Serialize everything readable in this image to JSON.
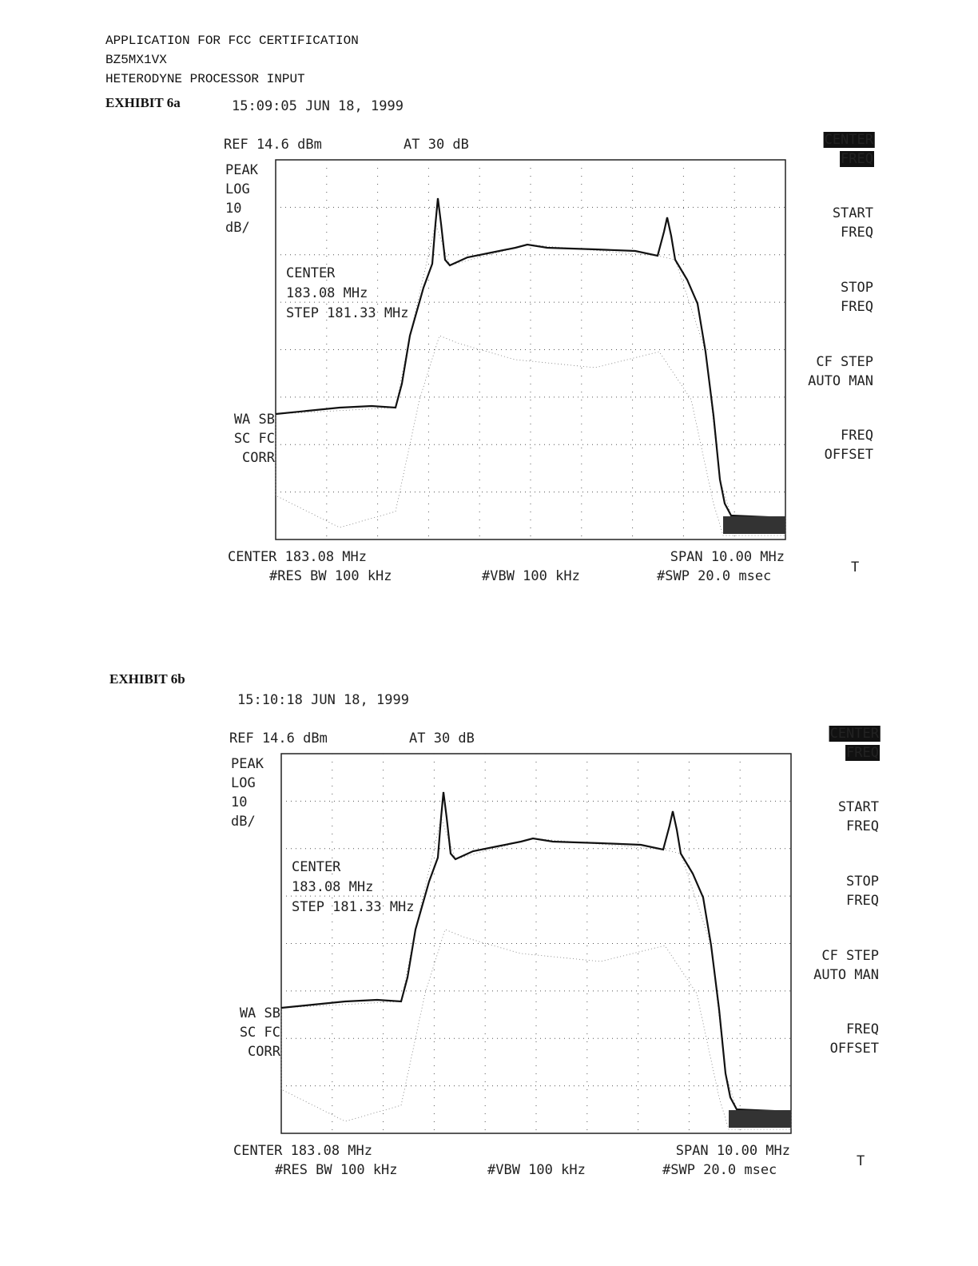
{
  "header": {
    "lines": [
      "APPLICATION FOR FCC CERTIFICATION",
      "BZ5MX1VX",
      "HETERODYNE PROCESSOR INPUT"
    ]
  },
  "exhibits": [
    {
      "label": "EXHIBIT 6a",
      "timestamp": "15:09:05 JUN 18, 1999",
      "ref": "REF 14.6 dBm",
      "atten": "AT 30 dB",
      "scale": [
        "PEAK",
        "LOG",
        "10",
        "dB/"
      ],
      "markers": [
        "WA SB",
        "SC FC",
        "CORR"
      ],
      "annotation": [
        "CENTER",
        "183.08 MHz",
        "STEP 181.33 MHz"
      ],
      "footer": {
        "center": "CENTER 183.08 MHz",
        "span": "SPAN 10.00 MHz",
        "rbw": "#RES BW 100 kHz",
        "vbw": "#VBW 100 kHz",
        "swp": "#SWP 20.0 msec"
      },
      "softkeys": [
        [
          "CENTER",
          "FREQ"
        ],
        [
          "START",
          "FREQ"
        ],
        [
          "STOP",
          "FREQ"
        ],
        [
          "CF STEP",
          "AUTO MAN"
        ],
        [
          "FREQ",
          "OFFSET"
        ]
      ],
      "mark": "T"
    },
    {
      "label": "EXHIBIT 6b",
      "timestamp": "15:10:18 JUN 18, 1999",
      "ref": "REF 14.6 dBm",
      "atten": "AT 30 dB",
      "scale": [
        "PEAK",
        "LOG",
        "10",
        "dB/"
      ],
      "markers": [
        "WA SB",
        "SC FC",
        "CORR"
      ],
      "annotation": [
        "CENTER",
        "183.08 MHz",
        "STEP 181.33 MHz"
      ],
      "footer": {
        "center": "CENTER 183.08 MHz",
        "span": "SPAN 10.00 MHz",
        "rbw": "#RES BW 100 kHz",
        "vbw": "#VBW 100 kHz",
        "swp": "#SWP 20.0 msec"
      },
      "softkeys": [
        [
          "CENTER",
          "FREQ"
        ],
        [
          "START",
          "FREQ"
        ],
        [
          "STOP",
          "FREQ"
        ],
        [
          "CF STEP",
          "AUTO MAN"
        ],
        [
          "FREQ",
          "OFFSET"
        ]
      ],
      "mark": "T"
    }
  ]
}
